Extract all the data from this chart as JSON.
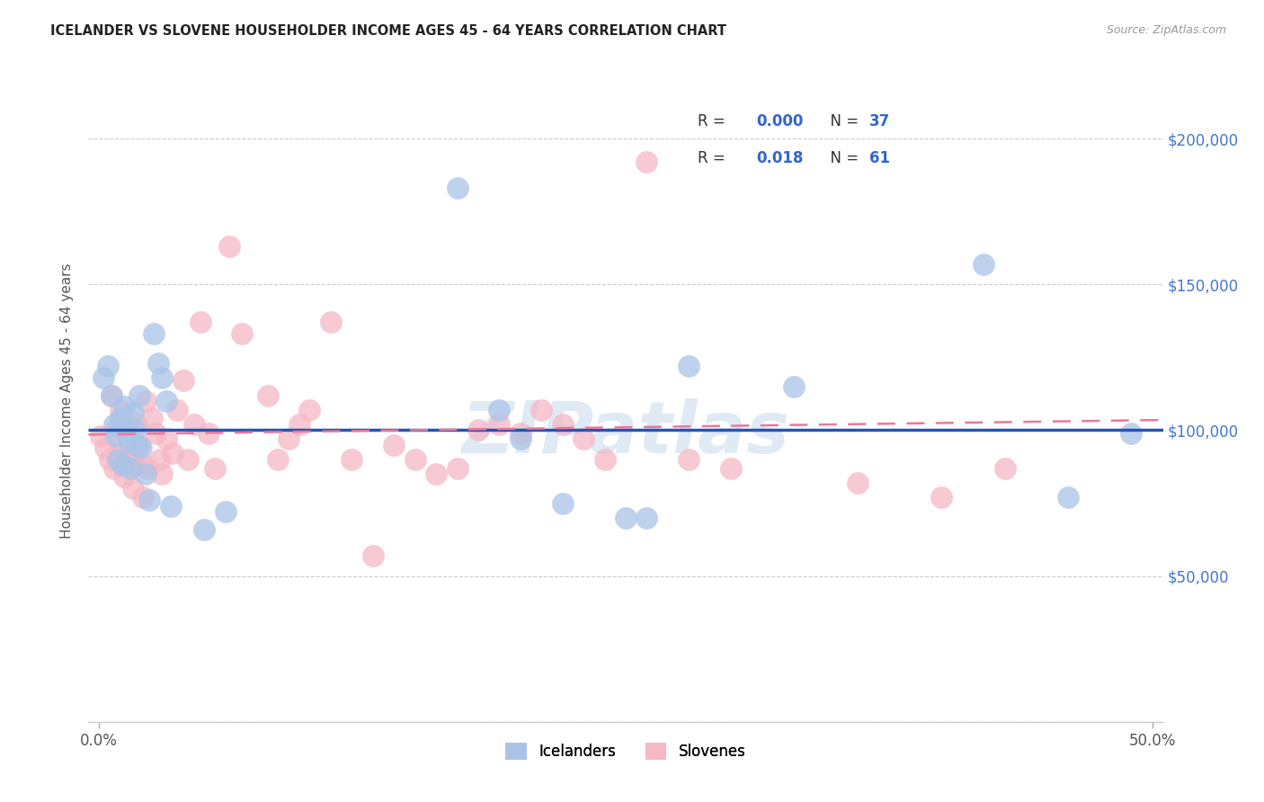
{
  "title": "ICELANDER VS SLOVENE HOUSEHOLDER INCOME AGES 45 - 64 YEARS CORRELATION CHART",
  "source": "Source: ZipAtlas.com",
  "ylabel": "Householder Income Ages 45 - 64 years",
  "xlim": [
    -0.005,
    0.505
  ],
  "ylim": [
    0,
    220000
  ],
  "xtick_positions": [
    0.0,
    0.5
  ],
  "xtick_labels": [
    "0.0%",
    "50.0%"
  ],
  "ytick_positions": [
    0,
    50000,
    100000,
    150000,
    200000
  ],
  "ytick_labels_left": [
    "",
    "",
    "",
    "",
    ""
  ],
  "ytick_labels_right": [
    "",
    "$50,000",
    "$100,000",
    "$150,000",
    "$200,000"
  ],
  "blue_color": "#aac4e8",
  "pink_color": "#f5b8c4",
  "blue_trend_color": "#2255bb",
  "pink_trend_color": "#ee7799",
  "watermark": "ZIPatlas",
  "legend_r_blue": "0.000",
  "legend_n_blue": "37",
  "legend_r_pink": "0.018",
  "legend_n_pink": "61",
  "legend_label_blue": "Icelanders",
  "legend_label_pink": "Slovenes",
  "icelander_x": [
    0.002,
    0.004,
    0.006,
    0.007,
    0.008,
    0.009,
    0.01,
    0.011,
    0.012,
    0.013,
    0.014,
    0.015,
    0.016,
    0.017,
    0.018,
    0.019,
    0.02,
    0.022,
    0.024,
    0.026,
    0.028,
    0.03,
    0.032,
    0.034,
    0.05,
    0.06,
    0.17,
    0.19,
    0.2,
    0.22,
    0.25,
    0.26,
    0.28,
    0.33,
    0.42,
    0.46,
    0.49
  ],
  "icelander_y": [
    118000,
    122000,
    112000,
    102000,
    98000,
    90000,
    104000,
    88000,
    108000,
    100000,
    96000,
    87000,
    106000,
    100000,
    95000,
    112000,
    94000,
    85000,
    76000,
    133000,
    123000,
    118000,
    110000,
    74000,
    66000,
    72000,
    183000,
    107000,
    97000,
    75000,
    70000,
    70000,
    122000,
    115000,
    157000,
    77000,
    99000
  ],
  "slovene_x": [
    0.001,
    0.003,
    0.005,
    0.006,
    0.007,
    0.008,
    0.009,
    0.01,
    0.011,
    0.012,
    0.013,
    0.014,
    0.015,
    0.016,
    0.017,
    0.018,
    0.019,
    0.02,
    0.021,
    0.022,
    0.023,
    0.025,
    0.027,
    0.029,
    0.03,
    0.032,
    0.035,
    0.037,
    0.04,
    0.042,
    0.045,
    0.048,
    0.052,
    0.055,
    0.062,
    0.068,
    0.08,
    0.085,
    0.09,
    0.095,
    0.1,
    0.11,
    0.12,
    0.13,
    0.14,
    0.15,
    0.16,
    0.17,
    0.18,
    0.19,
    0.2,
    0.21,
    0.22,
    0.23,
    0.24,
    0.26,
    0.28,
    0.3,
    0.36,
    0.4,
    0.43
  ],
  "slovene_y": [
    98000,
    94000,
    90000,
    112000,
    87000,
    100000,
    92000,
    107000,
    90000,
    84000,
    101000,
    90000,
    93000,
    80000,
    88000,
    102000,
    95000,
    89000,
    77000,
    110000,
    87000,
    104000,
    99000,
    90000,
    85000,
    97000,
    92000,
    107000,
    117000,
    90000,
    102000,
    137000,
    99000,
    87000,
    163000,
    133000,
    112000,
    90000,
    97000,
    102000,
    107000,
    137000,
    90000,
    57000,
    95000,
    90000,
    85000,
    87000,
    100000,
    102000,
    99000,
    107000,
    102000,
    97000,
    90000,
    192000,
    90000,
    87000,
    82000,
    77000,
    87000
  ]
}
